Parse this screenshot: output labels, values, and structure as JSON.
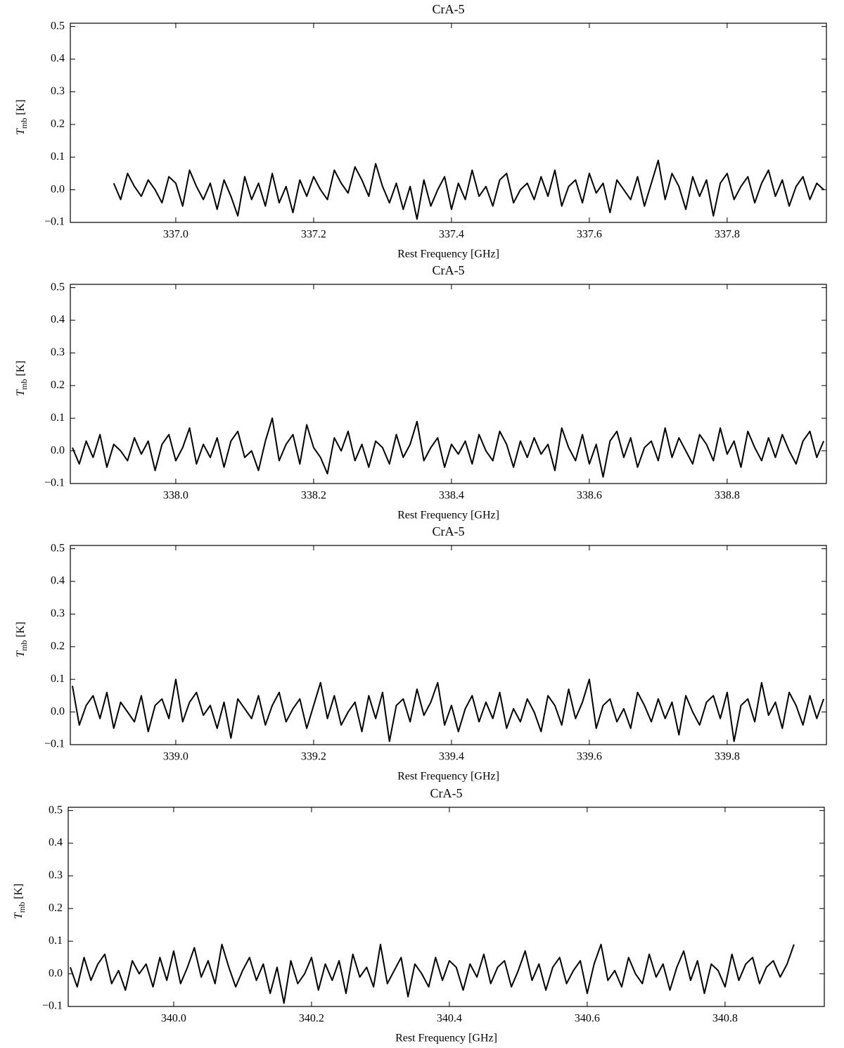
{
  "chart_data": [
    {
      "type": "line",
      "title": "CrA-5",
      "xlabel": "Rest Frequency [GHz]",
      "ylabel": {
        "symbol": "T",
        "subscript": "mb",
        "unit": "[K]"
      },
      "color": "#000000",
      "xlim": [
        336.847,
        337.944
      ],
      "ylim": [
        -0.1,
        0.51
      ],
      "xticks": [
        {
          "value": 337,
          "label": "337.0"
        },
        337.2,
        337.4,
        337.6,
        337.8
      ],
      "yticks": [
        {
          "value": -0.1,
          "label": "−0.1"
        },
        {
          "value": 0,
          "label": "0.0"
        },
        0.1,
        0.2,
        0.3,
        0.4,
        0.5
      ],
      "x": [
        336.91,
        336.92,
        336.93,
        336.94,
        336.95,
        336.96,
        336.97,
        336.98,
        336.99,
        337.0,
        337.01,
        337.02,
        337.03,
        337.04,
        337.05,
        337.06,
        337.07,
        337.08,
        337.09,
        337.1,
        337.11,
        337.12,
        337.13,
        337.14,
        337.15,
        337.16,
        337.17,
        337.18,
        337.19,
        337.2,
        337.21,
        337.22,
        337.23,
        337.24,
        337.25,
        337.26,
        337.27,
        337.28,
        337.29,
        337.3,
        337.31,
        337.32,
        337.33,
        337.34,
        337.35,
        337.36,
        337.37,
        337.38,
        337.39,
        337.4,
        337.41,
        337.42,
        337.43,
        337.44,
        337.45,
        337.46,
        337.47,
        337.48,
        337.49,
        337.5,
        337.51,
        337.52,
        337.53,
        337.54,
        337.55,
        337.56,
        337.57,
        337.58,
        337.59,
        337.6,
        337.61,
        337.62,
        337.63,
        337.64,
        337.65,
        337.66,
        337.67,
        337.68,
        337.69,
        337.7,
        337.71,
        337.72,
        337.73,
        337.74,
        337.75,
        337.76,
        337.77,
        337.78,
        337.79,
        337.8,
        337.81,
        337.82,
        337.83,
        337.84,
        337.85,
        337.86,
        337.87,
        337.88,
        337.89,
        337.9,
        337.91,
        337.92,
        337.93,
        337.94
      ],
      "values": [
        0.02,
        -0.03,
        0.05,
        0.01,
        -0.02,
        0.03,
        0.0,
        -0.04,
        0.04,
        0.02,
        -0.05,
        0.06,
        0.01,
        -0.03,
        0.02,
        -0.06,
        0.03,
        -0.02,
        -0.08,
        0.04,
        -0.03,
        0.02,
        -0.05,
        0.05,
        -0.04,
        0.01,
        -0.07,
        0.03,
        -0.02,
        0.04,
        0.0,
        -0.03,
        0.06,
        0.02,
        -0.01,
        0.07,
        0.03,
        -0.02,
        0.08,
        0.01,
        -0.04,
        0.02,
        -0.06,
        0.01,
        -0.09,
        0.03,
        -0.05,
        0.0,
        0.04,
        -0.06,
        0.02,
        -0.03,
        0.06,
        -0.02,
        0.01,
        -0.05,
        0.03,
        0.05,
        -0.04,
        0.0,
        0.02,
        -0.03,
        0.04,
        -0.02,
        0.06,
        -0.05,
        0.01,
        0.03,
        -0.04,
        0.05,
        -0.01,
        0.02,
        -0.07,
        0.03,
        0.0,
        -0.03,
        0.04,
        -0.05,
        0.02,
        0.09,
        -0.03,
        0.05,
        0.01,
        -0.06,
        0.04,
        -0.02,
        0.03,
        -0.08,
        0.02,
        0.05,
        -0.03,
        0.01,
        0.04,
        -0.04,
        0.02,
        0.06,
        -0.02,
        0.03,
        -0.05,
        0.01,
        0.04,
        -0.03,
        0.02,
        0.0
      ]
    },
    {
      "type": "line",
      "title": "CrA-5",
      "xlabel": "Rest Frequency [GHz]",
      "ylabel": {
        "symbol": "T",
        "subscript": "mb",
        "unit": "[K]"
      },
      "color": "#000000",
      "xlim": [
        337.847,
        338.944
      ],
      "ylim": [
        -0.1,
        0.51
      ],
      "xticks": [
        {
          "value": 338,
          "label": "338.0"
        },
        338.2,
        338.4,
        338.6,
        338.8
      ],
      "yticks": [
        {
          "value": -0.1,
          "label": "−0.1"
        },
        {
          "value": 0,
          "label": "0.0"
        },
        0.1,
        0.2,
        0.3,
        0.4,
        0.5
      ],
      "x": [
        337.85,
        337.86,
        337.87,
        337.88,
        337.89,
        337.9,
        337.91,
        337.92,
        337.93,
        337.94,
        337.95,
        337.96,
        337.97,
        337.98,
        337.99,
        338.0,
        338.01,
        338.02,
        338.03,
        338.04,
        338.05,
        338.06,
        338.07,
        338.08,
        338.09,
        338.1,
        338.11,
        338.12,
        338.13,
        338.14,
        338.15,
        338.16,
        338.17,
        338.18,
        338.19,
        338.2,
        338.21,
        338.22,
        338.23,
        338.24,
        338.25,
        338.26,
        338.27,
        338.28,
        338.29,
        338.3,
        338.31,
        338.32,
        338.33,
        338.34,
        338.35,
        338.36,
        338.37,
        338.38,
        338.39,
        338.4,
        338.41,
        338.42,
        338.43,
        338.44,
        338.45,
        338.46,
        338.47,
        338.48,
        338.49,
        338.5,
        338.51,
        338.52,
        338.53,
        338.54,
        338.55,
        338.56,
        338.57,
        338.58,
        338.59,
        338.6,
        338.61,
        338.62,
        338.63,
        338.64,
        338.65,
        338.66,
        338.67,
        338.68,
        338.69,
        338.7,
        338.71,
        338.72,
        338.73,
        338.74,
        338.75,
        338.76,
        338.77,
        338.78,
        338.79,
        338.8,
        338.81,
        338.82,
        338.83,
        338.84,
        338.85,
        338.86,
        338.87,
        338.88,
        338.89,
        338.9,
        338.91,
        338.92,
        338.93,
        338.94
      ],
      "values": [
        0.01,
        -0.04,
        0.03,
        -0.02,
        0.05,
        -0.05,
        0.02,
        0.0,
        -0.03,
        0.04,
        -0.01,
        0.03,
        -0.06,
        0.02,
        0.05,
        -0.03,
        0.01,
        0.07,
        -0.04,
        0.02,
        -0.02,
        0.04,
        -0.05,
        0.03,
        0.06,
        -0.02,
        0.0,
        -0.06,
        0.03,
        0.1,
        -0.03,
        0.02,
        0.05,
        -0.04,
        0.08,
        0.01,
        -0.02,
        -0.07,
        0.04,
        0.0,
        0.06,
        -0.03,
        0.02,
        -0.05,
        0.03,
        0.01,
        -0.04,
        0.05,
        -0.02,
        0.02,
        0.09,
        -0.03,
        0.01,
        0.04,
        -0.05,
        0.02,
        -0.01,
        0.03,
        -0.04,
        0.05,
        0.0,
        -0.03,
        0.06,
        0.02,
        -0.05,
        0.03,
        -0.02,
        0.04,
        -0.01,
        0.02,
        -0.06,
        0.07,
        0.01,
        -0.03,
        0.05,
        -0.04,
        0.02,
        -0.08,
        0.03,
        0.06,
        -0.02,
        0.04,
        -0.05,
        0.01,
        0.03,
        -0.03,
        0.07,
        -0.02,
        0.04,
        0.0,
        -0.04,
        0.05,
        0.02,
        -0.03,
        0.07,
        -0.01,
        0.03,
        -0.05,
        0.06,
        0.01,
        -0.03,
        0.04,
        -0.02,
        0.05,
        0.0,
        -0.04,
        0.03,
        0.06,
        -0.02,
        0.03
      ]
    },
    {
      "type": "line",
      "title": "CrA-5",
      "xlabel": "Rest Frequency [GHz]",
      "ylabel": {
        "symbol": "T",
        "subscript": "mb",
        "unit": "[K]"
      },
      "color": "#000000",
      "xlim": [
        338.847,
        339.944
      ],
      "ylim": [
        -0.1,
        0.51
      ],
      "xticks": [
        {
          "value": 339,
          "label": "339.0"
        },
        339.2,
        339.4,
        339.6,
        339.8
      ],
      "yticks": [
        {
          "value": -0.1,
          "label": "−0.1"
        },
        {
          "value": 0,
          "label": "0.0"
        },
        0.1,
        0.2,
        0.3,
        0.4,
        0.5
      ],
      "x": [
        338.85,
        338.86,
        338.87,
        338.88,
        338.89,
        338.9,
        338.91,
        338.92,
        338.93,
        338.94,
        338.95,
        338.96,
        338.97,
        338.98,
        338.99,
        339.0,
        339.01,
        339.02,
        339.03,
        339.04,
        339.05,
        339.06,
        339.07,
        339.08,
        339.09,
        339.1,
        339.11,
        339.12,
        339.13,
        339.14,
        339.15,
        339.16,
        339.17,
        339.18,
        339.19,
        339.2,
        339.21,
        339.22,
        339.23,
        339.24,
        339.25,
        339.26,
        339.27,
        339.28,
        339.29,
        339.3,
        339.31,
        339.32,
        339.33,
        339.34,
        339.35,
        339.36,
        339.37,
        339.38,
        339.39,
        339.4,
        339.41,
        339.42,
        339.43,
        339.44,
        339.45,
        339.46,
        339.47,
        339.48,
        339.49,
        339.5,
        339.51,
        339.52,
        339.53,
        339.54,
        339.55,
        339.56,
        339.57,
        339.58,
        339.59,
        339.6,
        339.61,
        339.62,
        339.63,
        339.64,
        339.65,
        339.66,
        339.67,
        339.68,
        339.69,
        339.7,
        339.71,
        339.72,
        339.73,
        339.74,
        339.75,
        339.76,
        339.77,
        339.78,
        339.79,
        339.8,
        339.81,
        339.82,
        339.83,
        339.84,
        339.85,
        339.86,
        339.87,
        339.88,
        339.89,
        339.9,
        339.91,
        339.92,
        339.93,
        339.94
      ],
      "values": [
        0.08,
        -0.04,
        0.02,
        0.05,
        -0.02,
        0.06,
        -0.05,
        0.03,
        0.0,
        -0.03,
        0.05,
        -0.06,
        0.02,
        0.04,
        -0.02,
        0.1,
        -0.03,
        0.03,
        0.06,
        -0.01,
        0.02,
        -0.05,
        0.03,
        -0.08,
        0.04,
        0.01,
        -0.02,
        0.05,
        -0.04,
        0.02,
        0.06,
        -0.03,
        0.01,
        0.04,
        -0.05,
        0.02,
        0.09,
        -0.02,
        0.05,
        -0.04,
        0.0,
        0.03,
        -0.06,
        0.05,
        -0.02,
        0.06,
        -0.09,
        0.02,
        0.04,
        -0.03,
        0.07,
        -0.01,
        0.03,
        0.09,
        -0.04,
        0.02,
        -0.06,
        0.01,
        0.05,
        -0.03,
        0.03,
        -0.02,
        0.06,
        -0.05,
        0.01,
        -0.03,
        0.04,
        0.0,
        -0.06,
        0.05,
        0.02,
        -0.04,
        0.07,
        -0.02,
        0.03,
        0.1,
        -0.05,
        0.02,
        0.04,
        -0.03,
        0.01,
        -0.05,
        0.06,
        0.02,
        -0.03,
        0.04,
        -0.02,
        0.03,
        -0.07,
        0.05,
        0.0,
        -0.04,
        0.03,
        0.05,
        -0.02,
        0.06,
        -0.09,
        0.02,
        0.04,
        -0.03,
        0.09,
        -0.01,
        0.03,
        -0.05,
        0.06,
        0.02,
        -0.04,
        0.05,
        -0.02,
        0.04
      ]
    },
    {
      "type": "line",
      "title": "CrA-5",
      "xlabel": "Rest Frequency [GHz]",
      "ylabel": {
        "symbol": "T",
        "subscript": "mb",
        "unit": "[K]"
      },
      "color": "#000000",
      "xlim": [
        339.847,
        340.944
      ],
      "ylim": [
        -0.1,
        0.51
      ],
      "xticks": [
        {
          "value": 340,
          "label": "340.0"
        },
        340.2,
        340.4,
        340.6,
        340.8
      ],
      "yticks": [
        {
          "value": -0.1,
          "label": "−0.1"
        },
        {
          "value": 0,
          "label": "0.0"
        },
        0.1,
        0.2,
        0.3,
        0.4,
        0.5
      ],
      "x": [
        339.85,
        339.86,
        339.87,
        339.88,
        339.89,
        339.9,
        339.91,
        339.92,
        339.93,
        339.94,
        339.95,
        339.96,
        339.97,
        339.98,
        339.99,
        340.0,
        340.01,
        340.02,
        340.03,
        340.04,
        340.05,
        340.06,
        340.07,
        340.08,
        340.09,
        340.1,
        340.11,
        340.12,
        340.13,
        340.14,
        340.15,
        340.16,
        340.17,
        340.18,
        340.19,
        340.2,
        340.21,
        340.22,
        340.23,
        340.24,
        340.25,
        340.26,
        340.27,
        340.28,
        340.29,
        340.3,
        340.31,
        340.32,
        340.33,
        340.34,
        340.35,
        340.36,
        340.37,
        340.38,
        340.39,
        340.4,
        340.41,
        340.42,
        340.43,
        340.44,
        340.45,
        340.46,
        340.47,
        340.48,
        340.49,
        340.5,
        340.51,
        340.52,
        340.53,
        340.54,
        340.55,
        340.56,
        340.57,
        340.58,
        340.59,
        340.6,
        340.61,
        340.62,
        340.63,
        340.64,
        340.65,
        340.66,
        340.67,
        340.68,
        340.69,
        340.7,
        340.71,
        340.72,
        340.73,
        340.74,
        340.75,
        340.76,
        340.77,
        340.78,
        340.79,
        340.8,
        340.81,
        340.82,
        340.83,
        340.84,
        340.85,
        340.86,
        340.87,
        340.88,
        340.89,
        340.9
      ],
      "values": [
        0.02,
        -0.04,
        0.05,
        -0.02,
        0.03,
        0.06,
        -0.03,
        0.01,
        -0.05,
        0.04,
        0.0,
        0.03,
        -0.04,
        0.05,
        -0.02,
        0.07,
        -0.03,
        0.02,
        0.08,
        -0.01,
        0.04,
        -0.03,
        0.09,
        0.02,
        -0.04,
        0.01,
        0.05,
        -0.02,
        0.03,
        -0.06,
        0.02,
        -0.09,
        0.04,
        -0.03,
        0.0,
        0.05,
        -0.05,
        0.03,
        -0.02,
        0.04,
        -0.06,
        0.06,
        -0.01,
        0.02,
        -0.04,
        0.09,
        -0.03,
        0.01,
        0.05,
        -0.07,
        0.03,
        0.0,
        -0.04,
        0.05,
        -0.02,
        0.04,
        0.02,
        -0.05,
        0.03,
        -0.01,
        0.06,
        -0.03,
        0.02,
        0.04,
        -0.04,
        0.01,
        0.07,
        -0.02,
        0.03,
        -0.05,
        0.02,
        0.05,
        -0.03,
        0.01,
        0.04,
        -0.06,
        0.03,
        0.09,
        -0.02,
        0.01,
        -0.04,
        0.05,
        0.0,
        -0.03,
        0.06,
        -0.01,
        0.03,
        -0.05,
        0.02,
        0.07,
        -0.02,
        0.04,
        -0.06,
        0.03,
        0.01,
        -0.04,
        0.06,
        -0.02,
        0.03,
        0.05,
        -0.03,
        0.02,
        0.04,
        -0.01,
        0.03,
        0.09
      ]
    }
  ]
}
